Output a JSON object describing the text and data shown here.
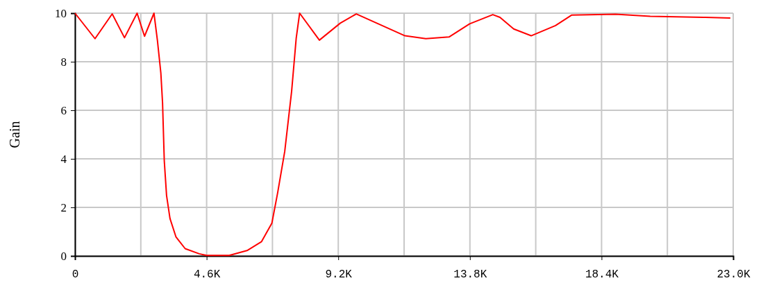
{
  "chart_data": {
    "type": "line",
    "ylabel": "Gain",
    "xlim": [
      0,
      23000
    ],
    "ylim": [
      0,
      10
    ],
    "xticks": [
      {
        "value": 0,
        "label": "0"
      },
      {
        "value": 2300,
        "label": null
      },
      {
        "value": 4600,
        "label": "4.6K"
      },
      {
        "value": 6900,
        "label": null
      },
      {
        "value": 9200,
        "label": "9.2K"
      },
      {
        "value": 11500,
        "label": null
      },
      {
        "value": 13800,
        "label": "13.8K"
      },
      {
        "value": 16100,
        "label": null
      },
      {
        "value": 18400,
        "label": "18.4K"
      },
      {
        "value": 20700,
        "label": null
      },
      {
        "value": 23000,
        "label": "23.0K"
      }
    ],
    "yticks": [
      0,
      2,
      4,
      6,
      8,
      10
    ],
    "grid": true,
    "marker": "none",
    "line_style": "solid",
    "series": [
      {
        "color": "#ff0000",
        "x": [
          0,
          700,
          1300,
          1730,
          2170,
          2430,
          2760,
          2880,
          3000,
          3060,
          3120,
          3200,
          3320,
          3530,
          3850,
          4340,
          4600,
          5390,
          6030,
          6520,
          6880,
          7080,
          7330,
          7570,
          7730,
          7850,
          8540,
          9270,
          9830,
          11530,
          12260,
          13070,
          13790,
          14600,
          14850,
          15330,
          15940,
          16790,
          17350,
          18890,
          20100,
          21960,
          22900
        ],
        "values": [
          10,
          8.95,
          9.97,
          8.99,
          10,
          9.05,
          10,
          8.88,
          7.54,
          6.3,
          3.92,
          2.49,
          1.54,
          0.78,
          0.3,
          0.09,
          0.02,
          0.02,
          0.23,
          0.59,
          1.35,
          2.59,
          4.31,
          6.78,
          8.97,
          10,
          8.89,
          9.59,
          9.97,
          9.07,
          8.95,
          9.02,
          9.56,
          9.94,
          9.83,
          9.35,
          9.07,
          9.49,
          9.92,
          9.96,
          9.87,
          9.83,
          9.8
        ]
      }
    ]
  }
}
